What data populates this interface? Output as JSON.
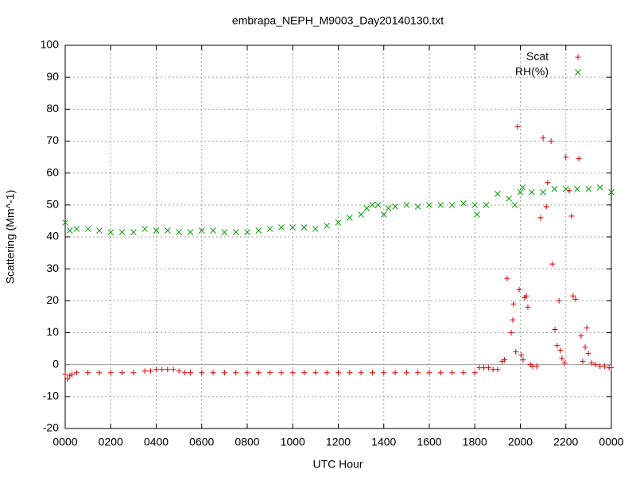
{
  "chart_data": {
    "type": "scatter",
    "title": "embrapa_NEPH_M9003_Day20140130.txt",
    "xlabel": "UTC Hour",
    "ylabel": "Scattering (Mm^-1)",
    "xlim": [
      0,
      24
    ],
    "xticks": [
      {
        "value": 0,
        "label": "0000"
      },
      {
        "value": 2,
        "label": "0200"
      },
      {
        "value": 4,
        "label": "0400"
      },
      {
        "value": 6,
        "label": "0600"
      },
      {
        "value": 8,
        "label": "0800"
      },
      {
        "value": 10,
        "label": "1000"
      },
      {
        "value": 12,
        "label": "1200"
      },
      {
        "value": 14,
        "label": "1400"
      },
      {
        "value": 16,
        "label": "1600"
      },
      {
        "value": 18,
        "label": "1800"
      },
      {
        "value": 20,
        "label": "2000"
      },
      {
        "value": 22,
        "label": "2200"
      },
      {
        "value": 24,
        "label": "0000"
      }
    ],
    "ylim": [
      -20,
      100
    ],
    "yticks": [
      -20,
      -10,
      0,
      10,
      20,
      30,
      40,
      50,
      60,
      70,
      80,
      90,
      100
    ],
    "grid": true,
    "zeroaxis": true,
    "legend": "top-right",
    "series": [
      {
        "name": "Scat",
        "color": "#e00000",
        "marker": "plus",
        "x": [
          0,
          0.1,
          0.2,
          0.3,
          0.5,
          1,
          1.5,
          2,
          2.5,
          3,
          3.5,
          3.75,
          4,
          4.25,
          4.5,
          4.75,
          5,
          5.25,
          5.5,
          6,
          6.5,
          7,
          7.5,
          8,
          8.5,
          9,
          9.5,
          10,
          10.5,
          11,
          11.5,
          12,
          12.5,
          13,
          13.5,
          14,
          14.5,
          15,
          15.5,
          16,
          16.5,
          17,
          17.5,
          18,
          18.2,
          18.4,
          18.6,
          18.8,
          19,
          19.2,
          19.3,
          19.42,
          19.6,
          19.67,
          19.7,
          19.8,
          19.88,
          19.95,
          20.05,
          20.12,
          20.19,
          20.26,
          20.33,
          20.44,
          20.54,
          20.72,
          20.89,
          21.0,
          21.14,
          21.2,
          21.35,
          21.41,
          21.52,
          21.62,
          21.7,
          21.76,
          21.83,
          21.94,
          22.0,
          22.15,
          22.25,
          22.32,
          22.43,
          22.57,
          22.67,
          22.74,
          22.85,
          22.92,
          22.99,
          23.13,
          23.3,
          23.5,
          23.7,
          23.9,
          24
        ],
        "values": [
          -3,
          -4.5,
          -3.5,
          -3,
          -2.5,
          -2.5,
          -2.5,
          -2.5,
          -2.5,
          -2.5,
          -2,
          -2,
          -1.5,
          -1.5,
          -1.5,
          -1.5,
          -2,
          -2.5,
          -2.5,
          -2.5,
          -2.5,
          -2.5,
          -2.5,
          -2.5,
          -2.5,
          -2.5,
          -2.5,
          -2.5,
          -2.5,
          -2.5,
          -2.5,
          -2.5,
          -2.5,
          -2.5,
          -2.5,
          -2.5,
          -2.5,
          -2.5,
          -2.5,
          -2.5,
          -2.5,
          -2.5,
          -2.5,
          -2.5,
          -1,
          -1,
          -1,
          -1.5,
          -1.5,
          1,
          1.5,
          27,
          10,
          14,
          19,
          4,
          74.5,
          23.5,
          3,
          1.5,
          21,
          21.5,
          18,
          0,
          -0.5,
          -0.5,
          46,
          71,
          49.5,
          57,
          70,
          31.5,
          11,
          6,
          20,
          4.5,
          2,
          0.5,
          65,
          54.5,
          46.5,
          21.5,
          20.5,
          64.5,
          9,
          1,
          5.5,
          11.5,
          3.5,
          0.5,
          0,
          -0.5,
          -0.5,
          -1,
          -1
        ]
      },
      {
        "name": "RH(%)",
        "color": "#00a000",
        "marker": "cross",
        "x": [
          0,
          0.2,
          0.5,
          1,
          1.5,
          2,
          2.5,
          3,
          3.5,
          4,
          4.5,
          5,
          5.5,
          6,
          6.5,
          7,
          7.5,
          8,
          8.5,
          9,
          9.5,
          10,
          10.5,
          11,
          11.5,
          12,
          12.5,
          13,
          13.25,
          13.5,
          13.75,
          14,
          14.2,
          14.5,
          15,
          15.5,
          16,
          16.5,
          17,
          17.5,
          18,
          18.1,
          18.5,
          19,
          19.5,
          19.75,
          20,
          20.1,
          20.5,
          21,
          21.5,
          22,
          22.5,
          23,
          23.5,
          24
        ],
        "values": [
          44.5,
          42,
          42.5,
          42.5,
          42,
          41.5,
          41.5,
          41.5,
          42.5,
          42,
          42,
          41.5,
          41.5,
          42,
          42,
          41.5,
          41.5,
          41.5,
          42,
          42.5,
          43,
          43,
          43,
          42.5,
          43.5,
          44.5,
          46,
          47,
          49,
          50,
          50,
          47,
          49,
          49.5,
          50,
          49.5,
          50,
          50,
          50,
          50.5,
          50,
          47,
          50,
          53.5,
          52,
          50,
          54,
          55.5,
          54,
          54,
          55,
          55,
          55,
          55,
          55.5,
          54
        ]
      }
    ]
  }
}
